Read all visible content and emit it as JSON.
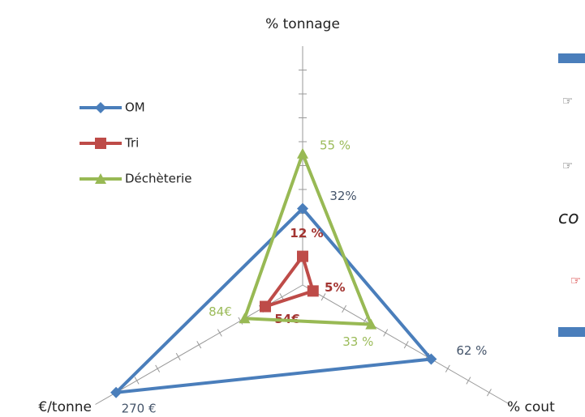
{
  "chart_data": {
    "type": "radar",
    "axes": [
      "% tonnage",
      "% cout",
      "€/tonne"
    ],
    "rlims": [
      [
        0,
        100
      ],
      [
        0,
        100
      ],
      [
        0,
        300
      ]
    ],
    "rticks": [
      [
        10,
        20,
        30,
        40,
        50,
        60,
        70,
        80,
        90
      ],
      [
        10,
        20,
        30,
        40,
        50,
        60,
        70,
        80,
        90
      ],
      [
        30,
        60,
        90,
        120,
        150,
        180,
        210,
        240,
        270
      ]
    ],
    "series": [
      {
        "name": "OM",
        "color": "#4a7ebb",
        "marker": "diamond",
        "values": [
          32,
          62,
          270
        ],
        "value_labels": [
          "32%",
          "62 %",
          "270 €"
        ]
      },
      {
        "name": "Tri",
        "color": "#be4b48",
        "marker": "square",
        "values": [
          12,
          5,
          54
        ],
        "value_labels": [
          "12 %",
          "5%",
          "54€"
        ]
      },
      {
        "name": "Déchèterie",
        "color": "#98b954",
        "marker": "triangle",
        "values": [
          55,
          33,
          84
        ],
        "value_labels": [
          "55 %",
          "33 %",
          "84€"
        ]
      }
    ],
    "legend": "upper-left"
  },
  "side": {
    "bullets": [
      "☞",
      "☞",
      "☞"
    ],
    "fragment": "co"
  }
}
